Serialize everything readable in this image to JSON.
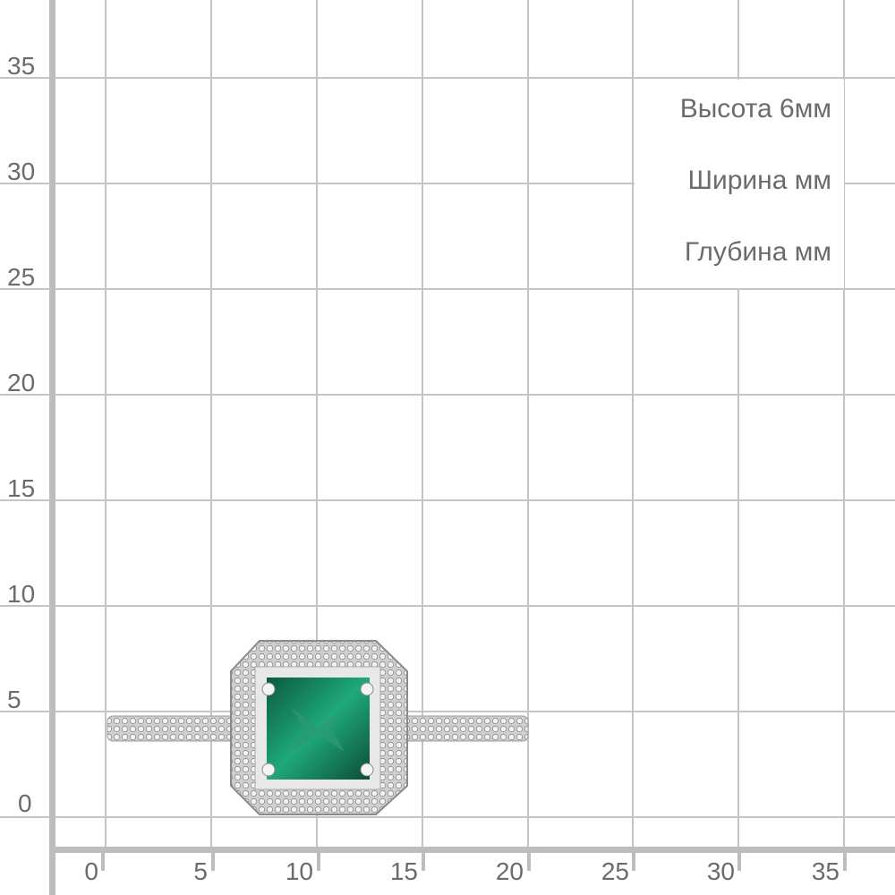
{
  "y_axis": {
    "labels": [
      "35",
      "30",
      "25",
      "20",
      "15",
      "10",
      "5",
      "0"
    ]
  },
  "x_axis": {
    "labels": [
      "0",
      "5",
      "10",
      "15",
      "20",
      "25",
      "30",
      "35"
    ]
  },
  "dimensions": {
    "height": "Высота  6мм",
    "width": "Ширина  мм",
    "depth": "Глубина мм"
  },
  "colors": {
    "grid": "#c4c4c4",
    "axis": "#bdbdbd",
    "text": "#6b6b6b",
    "stone": "#0f8a5f",
    "metal": "#d9d9d9"
  }
}
